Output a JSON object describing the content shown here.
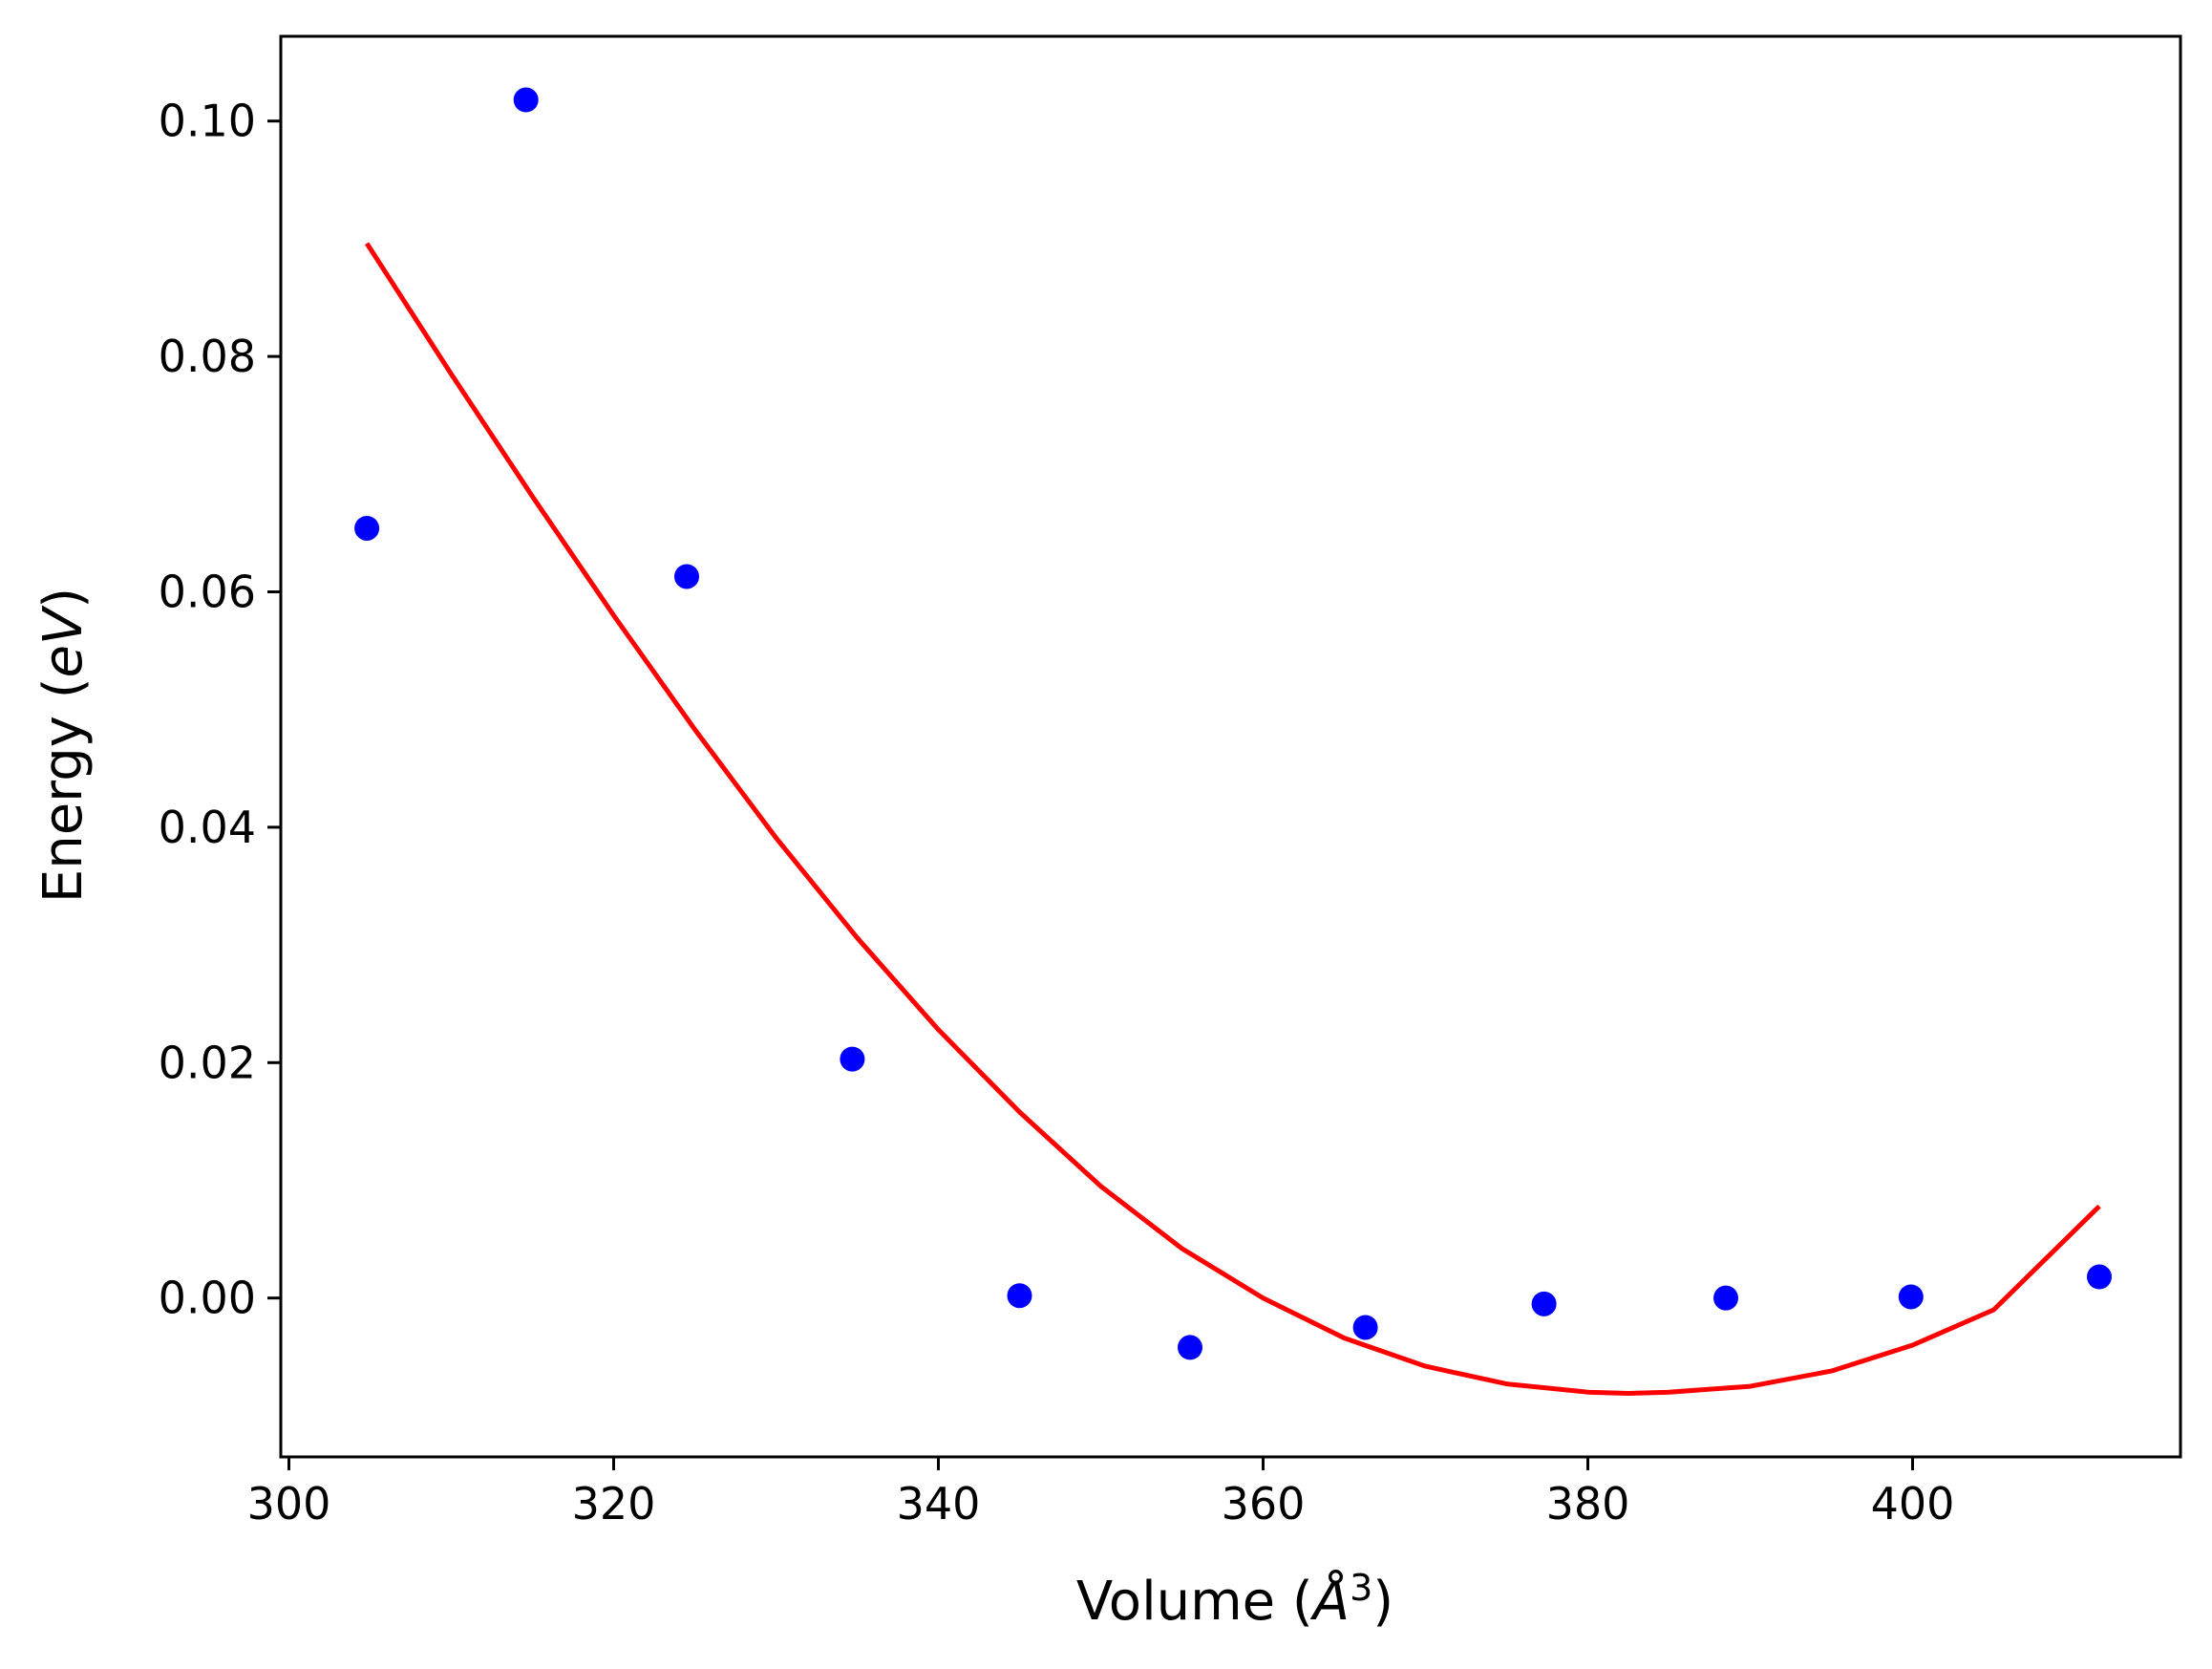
{
  "chart_data": {
    "type": "scatter",
    "title": "",
    "xlabel": "Volume",
    "xlabel_unit": "Å",
    "xlabel_unit_exponent": "3",
    "ylabel": "Energy",
    "ylabel_unit": "eV",
    "xlim": [
      299.5,
      416.5
    ],
    "ylim": [
      -0.0135,
      0.1072
    ],
    "xticks": [
      300,
      320,
      340,
      360,
      380,
      400
    ],
    "xtick_labels": [
      "300",
      "320",
      "340",
      "360",
      "380",
      "400"
    ],
    "yticks": [
      0.0,
      0.02,
      0.04,
      0.06,
      0.08,
      0.1
    ],
    "ytick_labels": [
      "0.00",
      "0.02",
      "0.04",
      "0.06",
      "0.08",
      "0.10"
    ],
    "grid": false,
    "series": [
      {
        "kind": "scatter",
        "color": "#0000ff",
        "points": [
          {
            "x": 304.8,
            "y": 0.0654
          },
          {
            "x": 314.6,
            "y": 0.1018
          },
          {
            "x": 324.5,
            "y": 0.0613
          },
          {
            "x": 334.7,
            "y": 0.0203
          },
          {
            "x": 345.0,
            "y": 0.0002
          },
          {
            "x": 355.5,
            "y": -0.0042
          },
          {
            "x": 366.3,
            "y": -0.0025
          },
          {
            "x": 377.3,
            "y": -0.0005
          },
          {
            "x": 388.5,
            "y": 0.0
          },
          {
            "x": 399.9,
            "y": 0.0001
          },
          {
            "x": 411.5,
            "y": 0.0018
          }
        ]
      },
      {
        "kind": "line",
        "color": "#ff0000",
        "points": [
          {
            "x": 304.8,
            "y": 0.0896
          },
          {
            "x": 310.0,
            "y": 0.0785
          },
          {
            "x": 315.0,
            "y": 0.0681
          },
          {
            "x": 320.0,
            "y": 0.058
          },
          {
            "x": 325.0,
            "y": 0.0483
          },
          {
            "x": 330.0,
            "y": 0.0391
          },
          {
            "x": 335.0,
            "y": 0.0306
          },
          {
            "x": 340.0,
            "y": 0.0228
          },
          {
            "x": 345.0,
            "y": 0.0158
          },
          {
            "x": 350.0,
            "y": 0.0095
          },
          {
            "x": 355.0,
            "y": 0.0042
          },
          {
            "x": 360.0,
            "y": 0.0
          },
          {
            "x": 365.0,
            "y": -0.0034
          },
          {
            "x": 370.0,
            "y": -0.0058
          },
          {
            "x": 375.0,
            "y": -0.0073
          },
          {
            "x": 380.0,
            "y": -0.008
          },
          {
            "x": 382.5,
            "y": -0.0081
          },
          {
            "x": 385.0,
            "y": -0.008
          },
          {
            "x": 390.0,
            "y": -0.0075
          },
          {
            "x": 395.0,
            "y": -0.0062
          },
          {
            "x": 400.0,
            "y": -0.004
          },
          {
            "x": 405.0,
            "y": -0.001
          },
          {
            "x": 411.5,
            "y": 0.0078
          }
        ]
      }
    ]
  }
}
